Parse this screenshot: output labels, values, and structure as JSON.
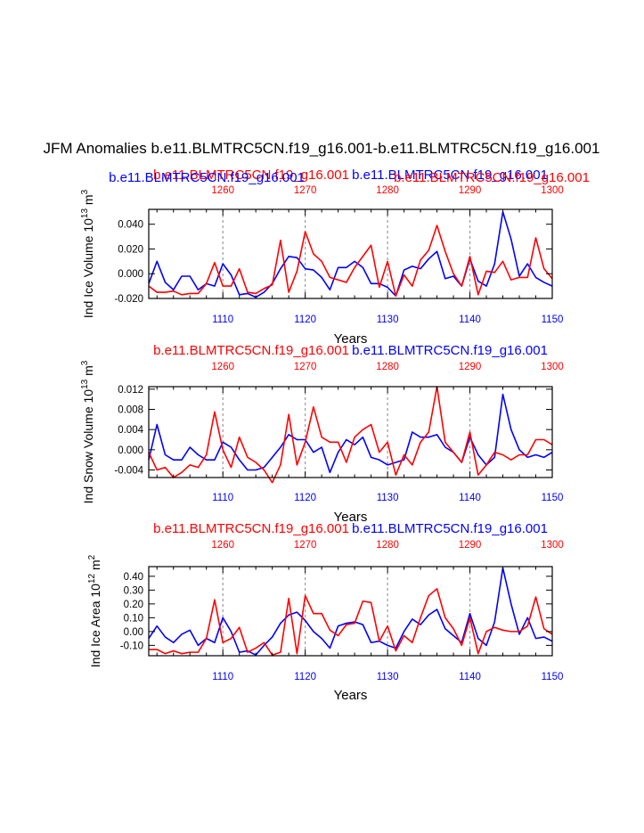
{
  "title": "JFM Anomalies b.e11.BLMTRC5CN.f19_g16.001-b.e11.BLMTRC5CN.f19_g16.001",
  "colors": {
    "primary": "#0000ff",
    "secondary": "#ff0000",
    "grid": "#999999",
    "axis": "#000000"
  },
  "chart_data": [
    {
      "type": "line",
      "ylabel": "Ind Ice Volume 10",
      "ylabel_exp": "13",
      "ylabel_unit": " m",
      "ylabel_unit_exp": "3",
      "xlabel": "Years",
      "title_left": "b.e11.BLMTRC5CN.f19_g16.001",
      "title_right": "b.e11.BLMTRC5CN.f19_g16.001",
      "title_left2": "b.e11.BLMTRC5CN.f19_g16.001",
      "title_right2": "b.e11.BLMTRC5CN.f19_g16.001",
      "xlim": [
        1101,
        1150
      ],
      "ylim": [
        -0.02,
        0.052
      ],
      "yticks": [
        -0.02,
        0.0,
        0.02,
        0.04
      ],
      "ytick_labels": [
        "-0.020",
        "0.000",
        "0.020",
        "0.040"
      ],
      "xticks_bottom": [
        1110,
        1120,
        1130,
        1140,
        1150
      ],
      "xticks_top": [
        1260,
        1270,
        1280,
        1290,
        1300
      ],
      "vlines": [
        1110,
        1120,
        1130,
        1140
      ],
      "series": [
        {
          "name": "b.e11.BLMTRC5CN.f19_g16.001 (years 1101-1150)",
          "color": "blue",
          "x_start": 1101,
          "values": [
            -0.008,
            0.01,
            -0.007,
            -0.013,
            -0.002,
            -0.002,
            -0.013,
            -0.008,
            -0.01,
            0.008,
            -0.001,
            -0.017,
            -0.016,
            -0.019,
            -0.015,
            -0.008,
            0.004,
            0.014,
            0.013,
            0.004,
            0.003,
            -0.003,
            -0.013,
            0.005,
            0.005,
            0.01,
            0.005,
            -0.008,
            -0.008,
            -0.011,
            -0.018,
            0.003,
            0.006,
            0.004,
            0.012,
            0.018,
            -0.004,
            -0.002,
            -0.01,
            0.012,
            -0.006,
            -0.01,
            0.008,
            0.05,
            0.028,
            -0.002,
            0.008,
            -0.003,
            -0.007,
            -0.01
          ]
        },
        {
          "name": "b.e11.BLMTRC5CN.f19_g16.001 (years 1251-1300)",
          "color": "red",
          "x_start": 1101,
          "values": [
            -0.01,
            -0.015,
            -0.015,
            -0.014,
            -0.017,
            -0.016,
            -0.016,
            -0.008,
            0.009,
            -0.01,
            -0.01,
            0.004,
            -0.015,
            -0.016,
            -0.012,
            -0.009,
            0.027,
            -0.015,
            0.002,
            0.034,
            0.016,
            0.01,
            -0.003,
            -0.005,
            -0.007,
            0.005,
            0.014,
            0.023,
            -0.011,
            0.01,
            -0.018,
            -0.001,
            -0.01,
            0.011,
            0.019,
            0.039,
            0.018,
            0.0,
            -0.01,
            0.014,
            -0.017,
            0.002,
            0.001,
            0.01,
            -0.005,
            -0.003,
            -0.003,
            0.029,
            0.004,
            -0.004
          ]
        }
      ]
    },
    {
      "type": "line",
      "ylabel": "Ind Snow Volume 10",
      "ylabel_exp": "13",
      "ylabel_unit": " m",
      "ylabel_unit_exp": "3",
      "xlabel": "Years",
      "title_left": "b.e11.BLMTRC5CN.f19_g16.001",
      "title_right": "b.e11.BLMTRC5CN.f19_g16.001",
      "xlim": [
        1101,
        1150
      ],
      "ylim": [
        -0.0055,
        0.0125
      ],
      "yticks": [
        -0.004,
        0.0,
        0.004,
        0.008,
        0.012
      ],
      "ytick_labels": [
        "-0.004",
        "0.000",
        "0.004",
        "0.008",
        "0.012"
      ],
      "xticks_bottom": [
        1110,
        1120,
        1130,
        1140,
        1150
      ],
      "xticks_top": [
        1260,
        1270,
        1280,
        1290,
        1300
      ],
      "vlines": [
        1110,
        1120,
        1130,
        1140
      ],
      "series": [
        {
          "name": "b.e11.BLMTRC5CN.f19_g16.001 (years 1101-1150)",
          "color": "blue",
          "x_start": 1101,
          "values": [
            -0.002,
            0.005,
            -0.001,
            -0.002,
            -0.002,
            0.0005,
            -0.001,
            -0.002,
            -0.002,
            0.0015,
            0.0005,
            -0.002,
            -0.004,
            -0.004,
            -0.0035,
            -0.0015,
            0.0005,
            0.003,
            0.002,
            0.002,
            -0.0005,
            0.0005,
            -0.0045,
            -0.0005,
            0.002,
            0.001,
            0.0025,
            -0.0015,
            -0.002,
            -0.003,
            -0.0025,
            -0.002,
            0.0035,
            0.0025,
            0.0025,
            0.003,
            0.0005,
            -0.0005,
            -0.0025,
            0.0025,
            -0.001,
            -0.003,
            -0.0015,
            0.011,
            0.004,
            0.0,
            -0.0015,
            -0.001,
            -0.0015,
            -0.0005
          ]
        },
        {
          "name": "b.e11.BLMTRC5CN.f19_g16.001 (years 1251-1300)",
          "color": "red",
          "x_start": 1101,
          "values": [
            -0.0005,
            -0.004,
            -0.0035,
            -0.0055,
            -0.0045,
            -0.003,
            -0.0035,
            -0.001,
            0.0075,
            0.0,
            -0.0035,
            0.0025,
            -0.0015,
            -0.0025,
            -0.004,
            -0.0065,
            -0.003,
            0.007,
            -0.003,
            0.0015,
            0.0085,
            0.0025,
            0.0015,
            0.0015,
            -0.0025,
            0.0025,
            0.004,
            0.005,
            -0.0005,
            0.0015,
            -0.005,
            -0.001,
            -0.003,
            0.0015,
            0.0035,
            0.0125,
            0.0015,
            -0.0005,
            -0.0025,
            0.0035,
            -0.005,
            -0.003,
            -0.0005,
            -0.001,
            -0.002,
            -0.001,
            -0.001,
            0.002,
            0.002,
            0.001
          ]
        }
      ]
    },
    {
      "type": "line",
      "ylabel": "Ind Ice Area 10",
      "ylabel_exp": "12",
      "ylabel_unit": " m",
      "ylabel_unit_exp": "2",
      "xlabel": "Years",
      "title_left": "b.e11.BLMTRC5CN.f19_g16.001",
      "title_right": "b.e11.BLMTRC5CN.f19_g16.001",
      "xlim": [
        1101,
        1150
      ],
      "ylim": [
        -0.175,
        0.47
      ],
      "yticks": [
        -0.1,
        0.0,
        0.1,
        0.2,
        0.3,
        0.4
      ],
      "ytick_labels": [
        "-0.10",
        "0.00",
        "0.10",
        "0.20",
        "0.30",
        "0.40"
      ],
      "xticks_bottom": [
        1110,
        1120,
        1130,
        1140,
        1150
      ],
      "xticks_top": [
        1260,
        1270,
        1280,
        1290,
        1300
      ],
      "vlines": [
        1110,
        1120,
        1130,
        1140
      ],
      "series": [
        {
          "name": "b.e11.BLMTRC5CN.f19_g16.001 (years 1101-1150)",
          "color": "blue",
          "x_start": 1101,
          "values": [
            -0.05,
            0.04,
            -0.04,
            -0.08,
            -0.02,
            0.01,
            -0.1,
            -0.05,
            -0.08,
            0.1,
            0.0,
            -0.15,
            -0.14,
            -0.17,
            -0.1,
            -0.04,
            0.06,
            0.12,
            0.14,
            0.08,
            0.0,
            -0.05,
            -0.12,
            0.04,
            0.06,
            0.07,
            0.05,
            -0.08,
            -0.07,
            -0.1,
            -0.12,
            0.0,
            0.09,
            0.05,
            0.12,
            0.16,
            0.02,
            -0.03,
            -0.08,
            0.13,
            -0.05,
            -0.1,
            0.07,
            0.46,
            0.2,
            -0.02,
            0.1,
            -0.05,
            -0.04,
            -0.07
          ]
        },
        {
          "name": "b.e11.BLMTRC5CN.f19_g16.001 (years 1251-1300)",
          "color": "red",
          "x_start": 1101,
          "values": [
            -0.13,
            -0.13,
            -0.16,
            -0.14,
            -0.16,
            -0.15,
            -0.15,
            -0.05,
            0.23,
            -0.08,
            -0.05,
            0.03,
            -0.15,
            -0.12,
            -0.08,
            -0.17,
            -0.15,
            0.24,
            -0.16,
            0.26,
            0.13,
            0.13,
            0.01,
            -0.03,
            0.05,
            0.06,
            0.22,
            0.21,
            -0.07,
            0.04,
            -0.14,
            -0.03,
            -0.08,
            0.1,
            0.26,
            0.31,
            0.1,
            0.02,
            -0.1,
            0.1,
            -0.16,
            0.0,
            0.03,
            0.01,
            0.0,
            0.0,
            0.04,
            0.25,
            0.02,
            -0.02
          ]
        }
      ]
    }
  ]
}
